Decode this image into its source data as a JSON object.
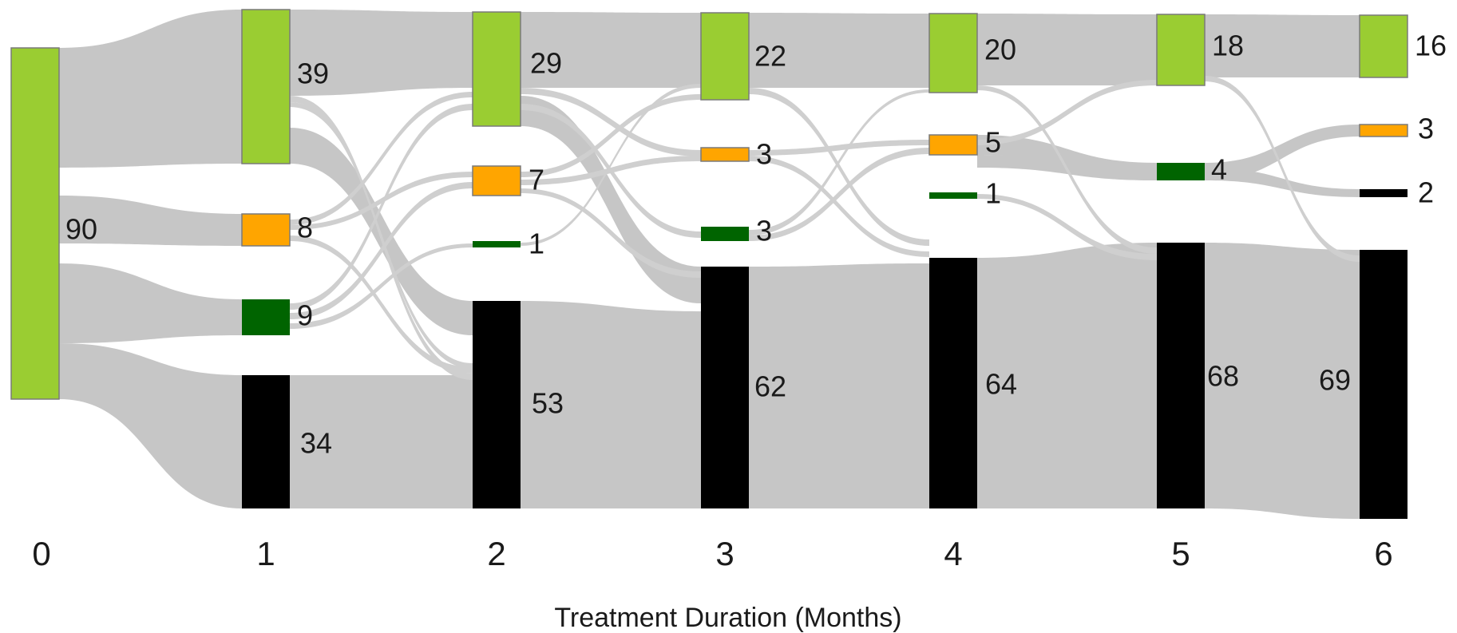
{
  "chart_data": {
    "type": "sankey",
    "xlabel": "Treatment Duration (Months)",
    "x": [
      "0",
      "1",
      "2",
      "3",
      "4",
      "5",
      "6"
    ],
    "color_scale": {
      "light-green": "#9ACD32",
      "orange": "#FFA500",
      "dark-green": "#006400",
      "black": "#000000"
    },
    "nodes": [
      [
        {
          "state": "light-green",
          "value": 90,
          "label": "90"
        }
      ],
      [
        {
          "state": "light-green",
          "value": 39,
          "label": "39"
        },
        {
          "state": "orange",
          "value": 8,
          "label": "8"
        },
        {
          "state": "dark-green",
          "value": 9,
          "label": "9"
        },
        {
          "state": "black",
          "value": 34,
          "label": "34"
        }
      ],
      [
        {
          "state": "light-green",
          "value": 29,
          "label": "29"
        },
        {
          "state": "orange",
          "value": 7,
          "label": "7"
        },
        {
          "state": "dark-green",
          "value": 1,
          "label": "1"
        },
        {
          "state": "black",
          "value": 53,
          "label": "53"
        }
      ],
      [
        {
          "state": "light-green",
          "value": 22,
          "label": "22"
        },
        {
          "state": "orange",
          "value": 3,
          "label": "3"
        },
        {
          "state": "dark-green",
          "value": 3,
          "label": "3"
        },
        {
          "state": "black",
          "value": 62,
          "label": "62"
        }
      ],
      [
        {
          "state": "light-green",
          "value": 20,
          "label": "20"
        },
        {
          "state": "orange",
          "value": 5,
          "label": "5"
        },
        {
          "state": "dark-green",
          "value": 1,
          "label": "1"
        },
        {
          "state": "black",
          "value": 64,
          "label": "64"
        }
      ],
      [
        {
          "state": "light-green",
          "value": 18,
          "label": "18"
        },
        {
          "state": "dark-green",
          "value": 4,
          "label": "4"
        },
        {
          "state": "black",
          "value": 68,
          "label": "68"
        }
      ],
      [
        {
          "state": "light-green",
          "value": 16,
          "label": "16"
        },
        {
          "state": "orange",
          "value": 3,
          "label": "3"
        },
        {
          "state": "black",
          "value": 2,
          "label": "2"
        },
        {
          "state": "black",
          "value": 69,
          "label": "69"
        }
      ]
    ]
  }
}
